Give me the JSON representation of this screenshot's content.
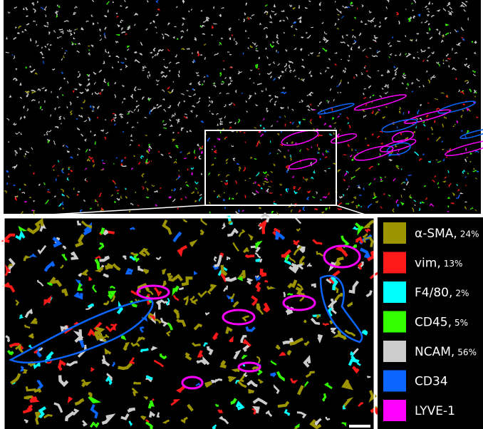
{
  "legend": {
    "items": [
      {
        "label": "α-SMA,",
        "percent": "24%",
        "color": "#9c9400"
      },
      {
        "label": "vim,",
        "percent": "13%",
        "color": "#ff1a1a"
      },
      {
        "label": "F4/80,",
        "percent": "2%",
        "color": "#00ffff"
      },
      {
        "label": "CD45,",
        "percent": "5%",
        "color": "#33ff00"
      },
      {
        "label": "NCAM,",
        "percent": "56%",
        "color": "#cccccc"
      },
      {
        "label": "CD34",
        "color": "#0a66ff"
      },
      {
        "label": "LYVE-1",
        "color": "#ff00ff"
      }
    ]
  }
}
